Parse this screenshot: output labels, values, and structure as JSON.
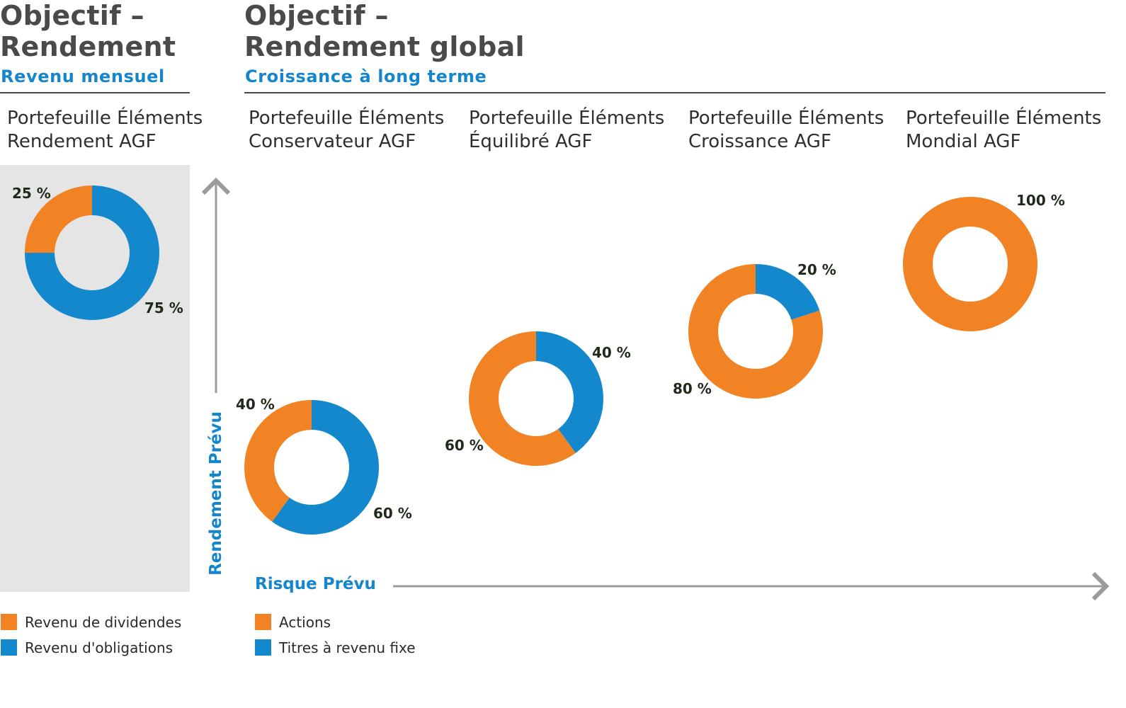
{
  "headers": {
    "left": {
      "title": "Objectif –\nRendement",
      "subtitle": "Revenu mensuel"
    },
    "right": {
      "title": "Objectif –\nRendement global",
      "subtitle": "Croissance à long terme"
    }
  },
  "colors": {
    "orange": "#f18324",
    "blue": "#1488cc",
    "gray_panel": "#e5e5e6",
    "axis": "#9b9b9b",
    "center_fill_left": "#e5e5e6"
  },
  "axes": {
    "y_label": "Rendement Prévu",
    "x_label": "Risque Prévu"
  },
  "chart_data": [
    {
      "type": "pie",
      "title": "Portefeuille Éléments\nRendement AGF",
      "slices": [
        {
          "name": "Revenu de dividendes",
          "value": 25,
          "label": "25 %"
        },
        {
          "name": "Revenu d'obligations",
          "value": 75,
          "label": "75 %"
        }
      ]
    },
    {
      "type": "pie",
      "title": "Portefeuille Éléments\nConservateur AGF",
      "slices": [
        {
          "name": "Actions",
          "value": 40,
          "label": "40 %"
        },
        {
          "name": "Titres à revenu fixe",
          "value": 60,
          "label": "60 %"
        }
      ]
    },
    {
      "type": "pie",
      "title": "Portefeuille Éléments\nÉquilibré AGF",
      "slices": [
        {
          "name": "Actions",
          "value": 60,
          "label": "60 %"
        },
        {
          "name": "Titres à revenu fixe",
          "value": 40,
          "label": "40 %"
        }
      ]
    },
    {
      "type": "pie",
      "title": "Portefeuille Éléments\nCroissance AGF",
      "slices": [
        {
          "name": "Actions",
          "value": 80,
          "label": "80 %"
        },
        {
          "name": "Titres à revenu fixe",
          "value": 20,
          "label": "20 %"
        }
      ]
    },
    {
      "type": "pie",
      "title": "Portefeuille Éléments\nMondial AGF",
      "slices": [
        {
          "name": "Actions",
          "value": 100,
          "label": "100 %"
        }
      ]
    }
  ],
  "legends": {
    "left": [
      {
        "label": "Revenu de dividendes",
        "color": "#f18324"
      },
      {
        "label": "Revenu d'obligations",
        "color": "#1488cc"
      }
    ],
    "right": [
      {
        "label": "Actions",
        "color": "#f18324"
      },
      {
        "label": "Titres à revenu fixe",
        "color": "#1488cc"
      }
    ]
  }
}
